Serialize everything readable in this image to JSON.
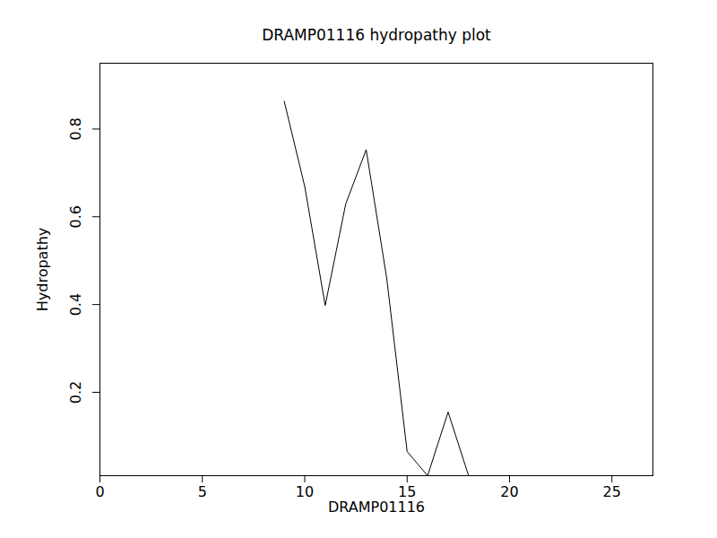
{
  "chart_data": {
    "type": "line",
    "title": "DRAMP01116 hydropathy plot",
    "x_label": "DRAMP01116",
    "y_label": "Hydropathy",
    "x": [
      9,
      10,
      11,
      12,
      13,
      14,
      15,
      16,
      17,
      18
    ],
    "values": [
      0.863,
      0.669,
      0.398,
      0.629,
      0.753,
      0.461,
      0.065,
      0.01,
      0.155,
      0.01
    ],
    "color": "#000000",
    "xlim": [
      0,
      27
    ],
    "xticks": [
      0,
      5,
      10,
      15,
      20,
      25
    ],
    "ylim": [
      0.01,
      0.95
    ],
    "yticks": [
      0.2,
      0.4,
      0.6,
      0.8
    ],
    "grid": false
  }
}
